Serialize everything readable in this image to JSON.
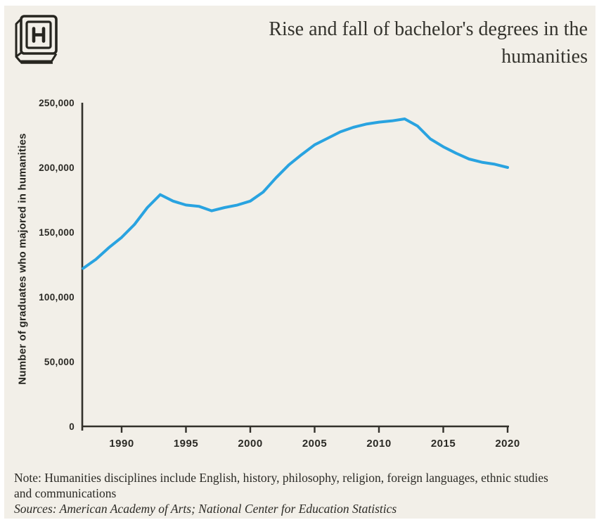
{
  "header": {
    "title_line1": "Rise and fall of bachelor's degrees in the",
    "title_line2": "humanities",
    "logo": "hechinger-h-book-logo"
  },
  "colors": {
    "card_background": "#f2efe8",
    "page_background": "#ffffff",
    "ink": "#2b2a25",
    "axis": "#33312b",
    "line": "#29a3e0"
  },
  "chart_data": {
    "type": "line",
    "title": "Rise and fall of bachelor's degrees in the humanities",
    "xlabel": "",
    "ylabel": "Number of graduates who majored in humanities",
    "xlim": [
      1987,
      2020
    ],
    "ylim": [
      0,
      250000
    ],
    "grid": false,
    "legend": "none",
    "xticks": [
      1990,
      1995,
      2000,
      2005,
      2010,
      2015,
      2020
    ],
    "yticks": [
      {
        "value": 0,
        "label": "0"
      },
      {
        "value": 50000,
        "label": "50,000"
      },
      {
        "value": 100000,
        "label": "100,000"
      },
      {
        "value": 150000,
        "label": "150,000"
      },
      {
        "value": 200000,
        "label": "200,000"
      },
      {
        "value": 250000,
        "label": "250,000"
      }
    ],
    "x": [
      1987,
      1988,
      1989,
      1990,
      1991,
      1992,
      1993,
      1994,
      1995,
      1996,
      1997,
      1998,
      1999,
      2000,
      2001,
      2002,
      2003,
      2004,
      2005,
      2006,
      2007,
      2008,
      2009,
      2010,
      2011,
      2012,
      2013,
      2014,
      2015,
      2016,
      2017,
      2018,
      2019,
      2020
    ],
    "series": [
      {
        "name": "Number of graduates who majored in humanities",
        "color": "#29a3e0",
        "values": [
          122000,
          129000,
          138000,
          146000,
          156000,
          169000,
          179000,
          174000,
          171000,
          170000,
          166500,
          169000,
          171000,
          174000,
          181000,
          192000,
          202000,
          210000,
          217500,
          222500,
          227500,
          231000,
          233500,
          235000,
          236000,
          237500,
          232000,
          222000,
          216000,
          211000,
          206500,
          204000,
          202500,
          200000
        ]
      }
    ]
  },
  "footer": {
    "note": "Note: Humanities disciplines include English, history, philosophy, religion, foreign languages, ethnic studies and communications",
    "sources": "Sources: American Academy of Arts; National Center for Education Statistics"
  }
}
